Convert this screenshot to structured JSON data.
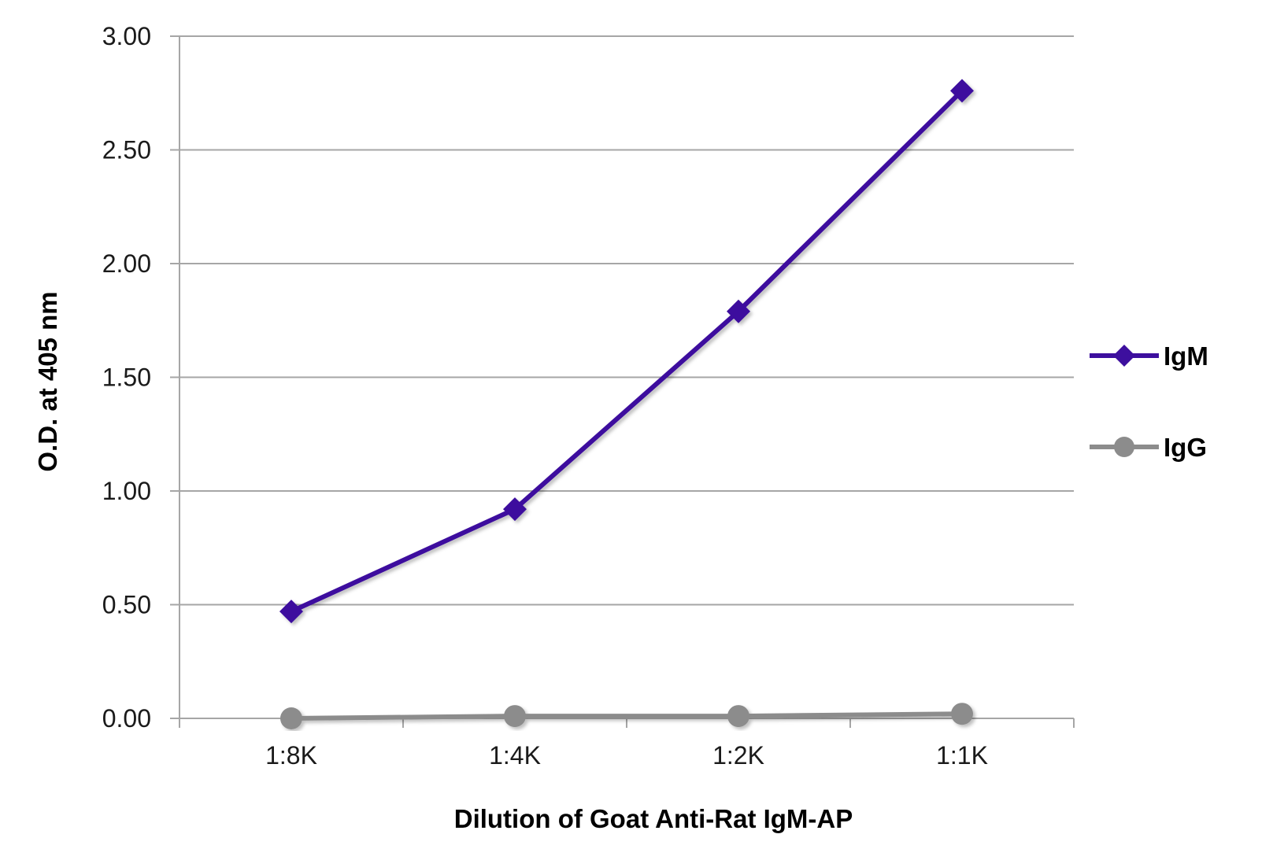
{
  "chart_data": {
    "type": "line",
    "title": "",
    "xlabel": "Dilution of Goat Anti-Rat IgM-AP",
    "ylabel": "O.D. at 405 nm",
    "categories": [
      "1:8K",
      "1:4K",
      "1:2K",
      "1:1K"
    ],
    "ylim": [
      0,
      3
    ],
    "yticks": [
      "0.00",
      "0.50",
      "1.00",
      "1.50",
      "2.00",
      "2.50",
      "3.00"
    ],
    "grid": true,
    "legend_position": "right",
    "series": [
      {
        "name": "IgM",
        "values": [
          0.47,
          0.92,
          1.79,
          2.76
        ],
        "color": "#3d0f9e",
        "marker": "diamond"
      },
      {
        "name": "IgG",
        "values": [
          0.0,
          0.01,
          0.01,
          0.02
        ],
        "color": "#8c8c8c",
        "marker": "circle"
      }
    ],
    "colors": {
      "grid": "#a6a6a6",
      "axis": "#a6a6a6"
    }
  }
}
